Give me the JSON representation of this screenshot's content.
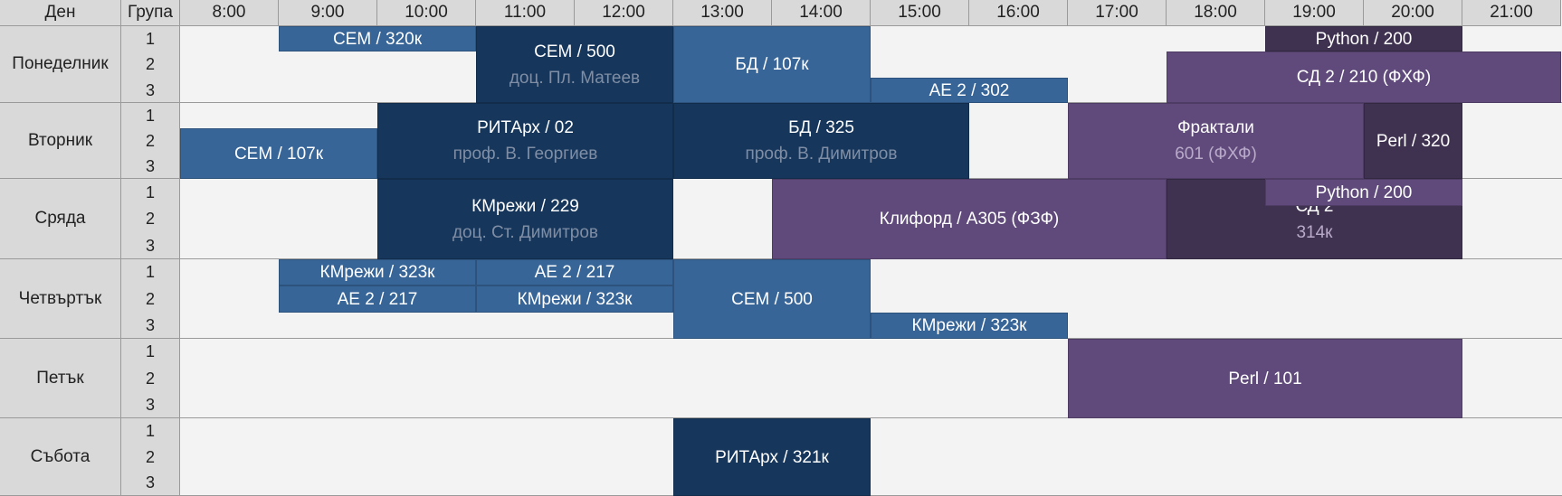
{
  "header": {
    "day_label": "Ден",
    "group_label": "Група",
    "times": [
      "8:00",
      "9:00",
      "10:00",
      "11:00",
      "12:00",
      "13:00",
      "14:00",
      "15:00",
      "16:00",
      "17:00",
      "18:00",
      "19:00",
      "20:00",
      "21:00"
    ]
  },
  "days": [
    {
      "name": "Понеделник",
      "groups": [
        "1",
        "2",
        "3"
      ]
    },
    {
      "name": "Вторник",
      "groups": [
        "1",
        "2",
        "3"
      ]
    },
    {
      "name": "Сряда",
      "groups": [
        "1",
        "2",
        "3"
      ]
    },
    {
      "name": "Четвъртък",
      "groups": [
        "1",
        "2",
        "3"
      ]
    },
    {
      "name": "Петък",
      "groups": [
        "1",
        "2",
        "3"
      ]
    },
    {
      "name": "Събота",
      "groups": [
        "1",
        "2",
        "3"
      ]
    }
  ],
  "colors": {
    "light_blue": "#376598",
    "dark_blue": "#16365c",
    "purple": "#604a7b",
    "dark_purple": "#3f3150",
    "header_bg": "#d9d9d9",
    "background": "#f3f3f3"
  },
  "classes": [
    {
      "day": 0,
      "start": 9,
      "end": 11,
      "groups": [
        1,
        1
      ],
      "color": "light_blue",
      "title": "СЕМ / 320к",
      "sub": ""
    },
    {
      "day": 0,
      "start": 11,
      "end": 13,
      "groups": [
        1,
        3
      ],
      "color": "dark_blue",
      "title": "СЕМ / 500",
      "sub": "доц. Пл. Матеев"
    },
    {
      "day": 0,
      "start": 13,
      "end": 15,
      "groups": [
        1,
        3
      ],
      "color": "light_blue",
      "title": "БД / 107к",
      "sub": ""
    },
    {
      "day": 0,
      "start": 15,
      "end": 17,
      "groups": [
        3,
        3
      ],
      "color": "light_blue",
      "title": "АЕ 2 / 302",
      "sub": ""
    },
    {
      "day": 0,
      "start": 19,
      "end": 21,
      "groups": [
        1,
        1
      ],
      "color": "dark_purple",
      "title": "Python / 200",
      "sub": ""
    },
    {
      "day": 0,
      "start": 18,
      "end": 22,
      "groups": [
        2,
        3
      ],
      "color": "purple",
      "title": "СД 2 / 210 (ФХФ)",
      "sub": ""
    },
    {
      "day": 1,
      "start": 8,
      "end": 10,
      "groups": [
        2,
        3
      ],
      "color": "light_blue",
      "title": "СЕМ / 107к",
      "sub": ""
    },
    {
      "day": 1,
      "start": 10,
      "end": 13,
      "groups": [
        1,
        3
      ],
      "color": "dark_blue",
      "title": "РИТАрх / 02",
      "sub": "проф. В. Георгиев"
    },
    {
      "day": 1,
      "start": 13,
      "end": 16,
      "groups": [
        1,
        3
      ],
      "color": "dark_blue",
      "title": "БД / 325",
      "sub": "проф. В. Димитров"
    },
    {
      "day": 1,
      "start": 17,
      "end": 20,
      "groups": [
        1,
        3
      ],
      "color": "purple",
      "title": "Фрактали",
      "sub": "601 (ФХФ)"
    },
    {
      "day": 1,
      "start": 20,
      "end": 21,
      "groups": [
        1,
        3
      ],
      "color": "dark_purple",
      "title": "Perl / 320",
      "sub": ""
    },
    {
      "day": 2,
      "start": 10,
      "end": 13,
      "groups": [
        1,
        3
      ],
      "color": "dark_blue",
      "title": "КМрежи / 229",
      "sub": "доц. Ст. Димитров"
    },
    {
      "day": 2,
      "start": 14,
      "end": 18,
      "groups": [
        1,
        3
      ],
      "color": "purple",
      "title": "Клифорд / А305 (ФЗФ)",
      "sub": ""
    },
    {
      "day": 2,
      "start": 18,
      "end": 21,
      "groups": [
        1,
        3
      ],
      "color": "dark_purple",
      "title": "СД 2",
      "sub": "314к"
    },
    {
      "day": 2,
      "start": 19,
      "end": 21,
      "groups": [
        1,
        1
      ],
      "color": "purple",
      "title": "Python / 200",
      "sub": ""
    },
    {
      "day": 3,
      "start": 9,
      "end": 11,
      "groups": [
        1,
        1
      ],
      "color": "light_blue",
      "title": "КМрежи / 323к",
      "sub": ""
    },
    {
      "day": 3,
      "start": 11,
      "end": 13,
      "groups": [
        1,
        1
      ],
      "color": "light_blue",
      "title": "АЕ 2 / 217",
      "sub": ""
    },
    {
      "day": 3,
      "start": 9,
      "end": 11,
      "groups": [
        2,
        2
      ],
      "color": "light_blue",
      "title": "АЕ 2 / 217",
      "sub": ""
    },
    {
      "day": 3,
      "start": 11,
      "end": 13,
      "groups": [
        2,
        2
      ],
      "color": "light_blue",
      "title": "КМрежи / 323к",
      "sub": ""
    },
    {
      "day": 3,
      "start": 13,
      "end": 15,
      "groups": [
        1,
        3
      ],
      "color": "light_blue",
      "title": "СЕМ / 500",
      "sub": ""
    },
    {
      "day": 3,
      "start": 15,
      "end": 17,
      "groups": [
        3,
        3
      ],
      "color": "light_blue",
      "title": "КМрежи / 323к",
      "sub": ""
    },
    {
      "day": 4,
      "start": 17,
      "end": 21,
      "groups": [
        1,
        3
      ],
      "color": "purple",
      "title": "Perl / 101",
      "sub": ""
    },
    {
      "day": 5,
      "start": 13,
      "end": 15,
      "groups": [
        1,
        3
      ],
      "color": "dark_blue",
      "title": "РИТАрх / 321к",
      "sub": ""
    }
  ]
}
